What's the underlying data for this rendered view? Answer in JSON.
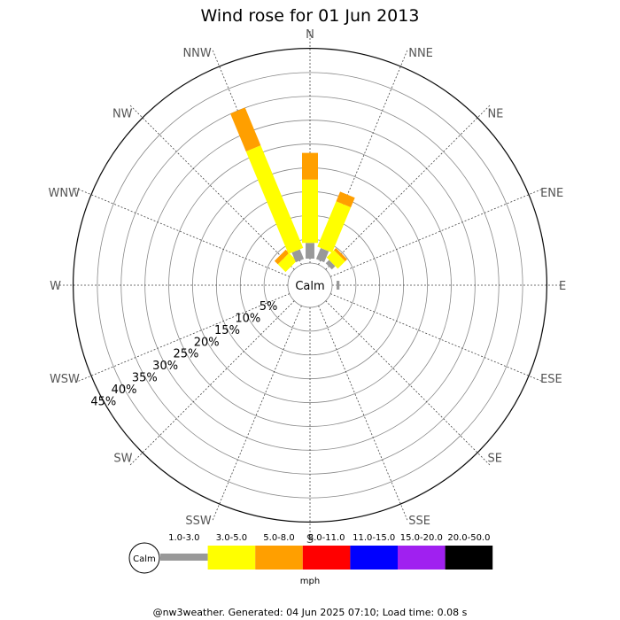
{
  "title": "Wind rose for 01 Jun 2013",
  "footer": "@nw3weather. Generated: 04 Jun 2025 07:10; Load time: 0.08 s",
  "calm_label": "Calm",
  "units": "mph",
  "directions": [
    "N",
    "NNE",
    "NE",
    "ENE",
    "E",
    "ESE",
    "SE",
    "SSE",
    "S",
    "SSW",
    "SW",
    "WSW",
    "W",
    "WNW",
    "NW",
    "NNW"
  ],
  "ring_labels": [
    "5%",
    "10%",
    "15%",
    "20%",
    "25%",
    "30%",
    "35%",
    "40%",
    "45%"
  ],
  "chart_data": {
    "type": "windrose",
    "title": "Wind rose for 01 Jun 2013",
    "radial_unit": "percent",
    "radial_max": 45,
    "ring_step": 5,
    "speed_bins": [
      {
        "label": "1.0-3.0",
        "color": "#999999"
      },
      {
        "label": "3.0-5.0",
        "color": "#ffff00"
      },
      {
        "label": "5.0-8.0",
        "color": "#ff9f00"
      },
      {
        "label": "8.0-11.0",
        "color": "#ff0000"
      },
      {
        "label": "11.0-15.0",
        "color": "#0000ff"
      },
      {
        "label": "15.0-20.0",
        "color": "#a020f0"
      },
      {
        "label": "20.0-50.0",
        "color": "#000000"
      }
    ],
    "series": [
      {
        "direction": "N",
        "values": [
          3.3,
          13.3,
          5.6,
          0,
          0,
          0,
          0
        ]
      },
      {
        "direction": "NNE",
        "values": [
          2.5,
          10.3,
          2.2,
          0,
          0,
          0,
          0
        ]
      },
      {
        "direction": "NE",
        "values": [
          1.0,
          2.2,
          0.6,
          0,
          0,
          0,
          0
        ]
      },
      {
        "direction": "ENE",
        "values": [
          0,
          0,
          0,
          0,
          0,
          0,
          0
        ]
      },
      {
        "direction": "E",
        "values": [
          0.6,
          0,
          0,
          0,
          0,
          0,
          0
        ]
      },
      {
        "direction": "ESE",
        "values": [
          0,
          0,
          0,
          0,
          0,
          0,
          0
        ]
      },
      {
        "direction": "SE",
        "values": [
          0,
          0,
          0,
          0,
          0,
          0,
          0
        ]
      },
      {
        "direction": "SSE",
        "values": [
          0,
          0,
          0,
          0,
          0,
          0,
          0
        ]
      },
      {
        "direction": "S",
        "values": [
          0,
          0,
          0,
          0,
          0,
          0,
          0
        ]
      },
      {
        "direction": "SSW",
        "values": [
          0,
          0,
          0,
          0,
          0,
          0,
          0
        ]
      },
      {
        "direction": "SW",
        "values": [
          0,
          0,
          0,
          0,
          0,
          0,
          0
        ]
      },
      {
        "direction": "WSW",
        "values": [
          0,
          0,
          0,
          0,
          0,
          0,
          0
        ]
      },
      {
        "direction": "W",
        "values": [
          0,
          0,
          0,
          0,
          0,
          0,
          0
        ]
      },
      {
        "direction": "WNW",
        "values": [
          0,
          0,
          0,
          0,
          0,
          0,
          0
        ]
      },
      {
        "direction": "NW",
        "values": [
          0,
          2.3,
          1.0,
          0,
          0,
          0,
          0
        ]
      },
      {
        "direction": "NNW",
        "values": [
          2.2,
          23.3,
          8.6,
          0,
          0,
          0,
          0
        ]
      }
    ]
  }
}
